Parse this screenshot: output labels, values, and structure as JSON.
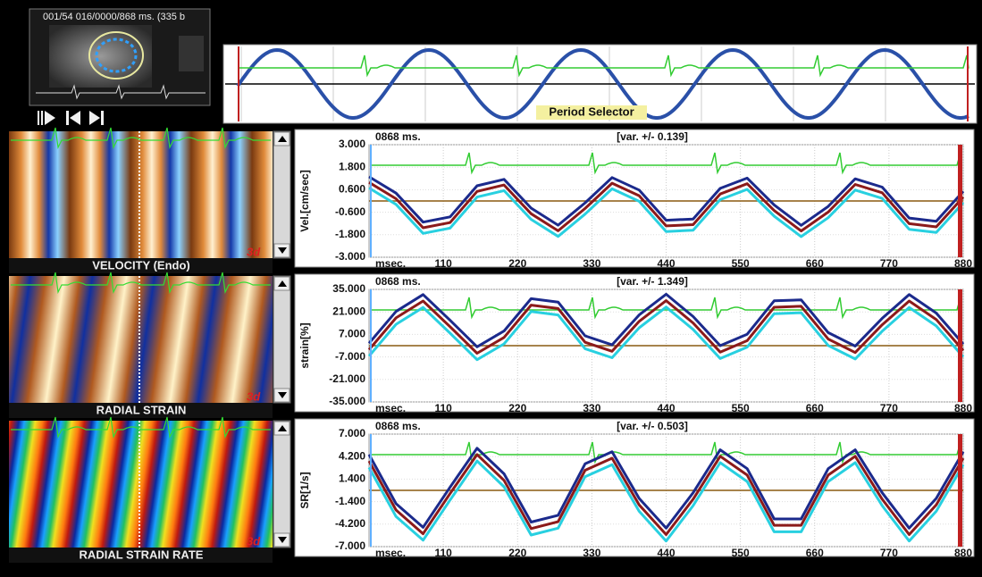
{
  "thumbnail": {
    "caption": "001/54  016/0000/868 ms.  (335 b"
  },
  "period_selector": {
    "label": "Period Selector"
  },
  "maps": [
    {
      "label": "VELOCITY (Endo)",
      "logo": "3d"
    },
    {
      "label": "RADIAL STRAIN",
      "logo": "3d"
    },
    {
      "label": "RADIAL STRAIN RATE",
      "logo": "3d"
    }
  ],
  "chart_data": [
    {
      "type": "line",
      "time_label": "0868 ms.",
      "variance_label": "[var. +/- 0.139]",
      "y_label": "Vel.[cm/sec]",
      "x_label": "msec.",
      "x": [
        0,
        40,
        80,
        120,
        160,
        200,
        240,
        280,
        320,
        360,
        400,
        440,
        480,
        520,
        560,
        600,
        640,
        680,
        720,
        760,
        800,
        840,
        880
      ],
      "xlim": [
        0,
        880
      ],
      "xticks": [
        110,
        220,
        330,
        440,
        550,
        660,
        770,
        880
      ],
      "ylim": [
        -3,
        3
      ],
      "yticks": [
        {
          "value": 3,
          "label": "3.000"
        },
        {
          "value": 1.8,
          "label": "1.800"
        },
        {
          "value": 0.6,
          "label": "0.600"
        },
        {
          "value": -0.6,
          "label": "-0.600"
        },
        {
          "value": -1.8,
          "label": "-1.800"
        },
        {
          "value": -3,
          "label": "-3.000"
        }
      ],
      "series": [
        {
          "color": "#1b2a8c",
          "values": [
            1.29,
            0.42,
            -1.13,
            -0.85,
            0.81,
            1.15,
            -0.38,
            -1.29,
            -0.1,
            1.25,
            0.58,
            -1.03,
            -0.96,
            0.67,
            1.22,
            -0.21,
            -1.3,
            -0.29,
            1.18,
            0.74,
            -0.91,
            -1.08,
            0.51
          ]
        },
        {
          "color": "#8b1a1a",
          "values": [
            0.99,
            0.12,
            -1.43,
            -1.15,
            0.51,
            0.85,
            -0.68,
            -1.59,
            -0.4,
            0.95,
            0.28,
            -1.33,
            -1.26,
            0.37,
            0.92,
            -0.51,
            -1.6,
            -0.59,
            0.88,
            0.44,
            -1.21,
            -1.38,
            0.21
          ]
        },
        {
          "color": "#28d0e0",
          "values": [
            0.69,
            -0.18,
            -1.73,
            -1.45,
            0.21,
            0.55,
            -0.98,
            -1.89,
            -0.7,
            0.65,
            -0.02,
            -1.63,
            -1.56,
            0.07,
            0.62,
            -0.81,
            -1.9,
            -0.89,
            0.58,
            0.14,
            -1.51,
            -1.68,
            -0.09
          ]
        }
      ]
    },
    {
      "type": "line",
      "time_label": "0868 ms.",
      "variance_label": "[var. +/- 1.349]",
      "y_label": "strain[%]",
      "x_label": "msec.",
      "x": [
        0,
        40,
        80,
        120,
        160,
        200,
        240,
        280,
        320,
        360,
        400,
        440,
        480,
        520,
        560,
        600,
        640,
        680,
        720,
        760,
        800,
        840,
        880
      ],
      "xlim": [
        0,
        880
      ],
      "xticks": [
        110,
        220,
        330,
        440,
        550,
        660,
        770,
        880
      ],
      "ylim": [
        -35,
        35
      ],
      "yticks": [
        {
          "value": 35,
          "label": "35.000"
        },
        {
          "value": 21,
          "label": "21.000"
        },
        {
          "value": 7,
          "label": "7.000"
        },
        {
          "value": -7,
          "label": "-7.000"
        },
        {
          "value": -21,
          "label": "-21.000"
        },
        {
          "value": -35,
          "label": "-35.000"
        }
      ],
      "series": [
        {
          "color": "#1b2a8c",
          "values": [
            1.5,
            21.3,
            31.8,
            15.8,
            -0.7,
            9.1,
            29.2,
            27.1,
            6.1,
            0.5,
            19.1,
            32.0,
            18.1,
            0.0,
            7.1,
            27.9,
            28.5,
            8.1,
            -0.3,
            17.0,
            31.8,
            20.3,
            1.0
          ]
        },
        {
          "color": "#8b1a1a",
          "values": [
            -2.5,
            17.3,
            27.8,
            11.8,
            -4.7,
            5.1,
            25.2,
            23.1,
            2.1,
            -3.5,
            15.1,
            28.0,
            14.1,
            -4.0,
            3.1,
            23.9,
            24.5,
            4.1,
            -4.3,
            13.0,
            27.8,
            16.3,
            -3.0
          ]
        },
        {
          "color": "#28d0e0",
          "values": [
            -6.5,
            13.3,
            23.8,
            7.8,
            -8.7,
            1.1,
            21.2,
            19.1,
            -1.9,
            -7.5,
            11.1,
            24.0,
            10.1,
            -8.0,
            -0.9,
            19.9,
            20.5,
            0.1,
            -8.3,
            9.0,
            23.8,
            12.3,
            -7.0
          ]
        }
      ]
    },
    {
      "type": "line",
      "time_label": "0868 ms.",
      "variance_label": "[var. +/- 0.503]",
      "y_label": "SR[1/s]",
      "x_label": "msec.",
      "x": [
        0,
        40,
        80,
        120,
        160,
        200,
        240,
        280,
        320,
        360,
        400,
        440,
        480,
        520,
        560,
        600,
        640,
        680,
        720,
        760,
        800,
        840,
        880
      ],
      "xlim": [
        0,
        880
      ],
      "xticks": [
        110,
        220,
        330,
        440,
        550,
        660,
        770,
        880
      ],
      "ylim": [
        -7,
        7
      ],
      "yticks": [
        {
          "value": 7,
          "label": "7.000"
        },
        {
          "value": 4.2,
          "label": "4.200"
        },
        {
          "value": 1.4,
          "label": "1.400"
        },
        {
          "value": -1.4,
          "label": "-1.400"
        },
        {
          "value": -4.2,
          "label": "-4.200"
        },
        {
          "value": -7,
          "label": "-7.000"
        }
      ],
      "series": [
        {
          "color": "#1b2a8c",
          "values": [
            4.45,
            -1.65,
            -4.6,
            0.4,
            5.25,
            2.05,
            -3.95,
            -3.1,
            3.3,
            4.8,
            -1.0,
            -4.7,
            -0.3,
            5.05,
            2.7,
            -3.55,
            -3.55,
            2.7,
            5.05,
            -0.3,
            -4.7,
            -1.0,
            4.8
          ]
        },
        {
          "color": "#8b1a1a",
          "values": [
            3.65,
            -2.45,
            -5.4,
            -0.4,
            4.45,
            1.25,
            -4.75,
            -3.9,
            2.5,
            4.0,
            -1.8,
            -5.5,
            -1.1,
            4.25,
            1.9,
            -4.35,
            -4.35,
            1.9,
            4.25,
            -1.1,
            -5.5,
            -1.8,
            4.0
          ]
        },
        {
          "color": "#28d0e0",
          "values": [
            2.85,
            -3.25,
            -6.2,
            -1.2,
            3.65,
            0.45,
            -5.55,
            -4.7,
            1.7,
            3.2,
            -2.6,
            -6.3,
            -1.9,
            3.45,
            1.1,
            -5.15,
            -5.15,
            1.1,
            3.45,
            -1.9,
            -6.3,
            -2.6,
            3.2
          ]
        }
      ]
    }
  ]
}
